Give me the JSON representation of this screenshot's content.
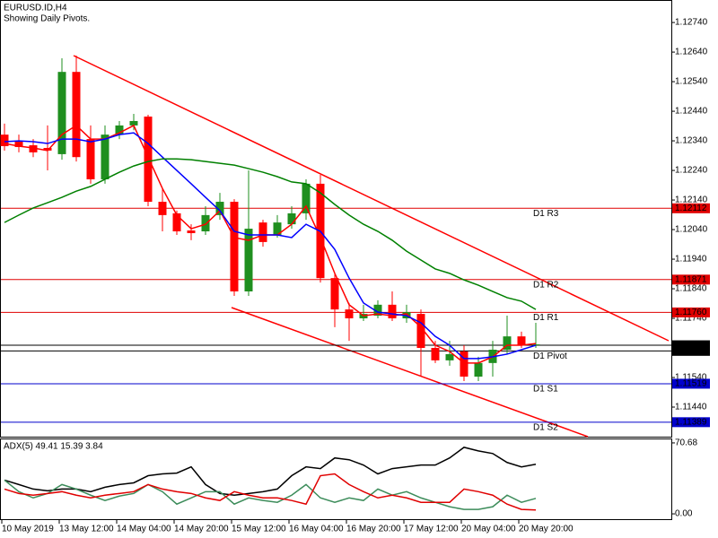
{
  "chart_data": [
    {
      "type": "candlestick",
      "title": "EURUSD.ID,H4",
      "subtitle": "Showing Daily Pivots.",
      "categories": [
        "10 May 2019",
        null,
        null,
        null,
        "13 May 12:00",
        null,
        null,
        null,
        "14 May 04:00",
        null,
        null,
        null,
        "14 May 20:00",
        null,
        null,
        null,
        "15 May 12:00",
        null,
        null,
        null,
        "16 May 04:00",
        null,
        null,
        null,
        "16 May 20:00",
        null,
        null,
        null,
        "17 May 12:00",
        null,
        null,
        null,
        "20 May 04:00",
        null,
        null,
        null,
        "20 May 20:00",
        null
      ],
      "open": [
        1.12361,
        1.12337,
        1.12325,
        1.12316,
        1.12295,
        1.12573,
        1.12346,
        1.1221,
        1.12361,
        1.12392,
        1.12422,
        1.12134,
        1.12095,
        1.12037,
        1.12034,
        1.12089,
        1.12134,
        1.11831,
        1.12064,
        1.12022,
        1.12058,
        1.12095,
        1.12195,
        1.11876,
        1.1177,
        1.1174,
        1.11749,
        1.11786,
        1.1174,
        1.11755,
        1.1164,
        1.11598,
        1.11628,
        1.11543,
        1.11589,
        1.11634,
        1.11679,
        1.11649
      ],
      "high": [
        1.12398,
        1.12361,
        1.12346,
        1.12392,
        1.12619,
        1.12628,
        1.12392,
        1.12392,
        1.12407,
        1.12431,
        1.12428,
        1.12179,
        1.12104,
        1.12058,
        1.12119,
        1.12164,
        1.12143,
        1.1224,
        1.12073,
        1.12089,
        1.12119,
        1.1221,
        1.12225,
        1.11892,
        1.11792,
        1.11786,
        1.11801,
        1.11831,
        1.11786,
        1.1177,
        1.11664,
        1.11664,
        1.11649,
        1.1161,
        1.11664,
        1.11749,
        1.11695,
        1.11725
      ],
      "low": [
        1.12307,
        1.12301,
        1.12285,
        1.1224,
        1.12276,
        1.1227,
        1.12195,
        1.12195,
        1.12346,
        1.12376,
        1.12119,
        1.12034,
        1.12022,
        1.12004,
        1.12022,
        1.12073,
        1.11816,
        1.11816,
        1.11982,
        1.12013,
        1.12043,
        1.12073,
        1.11861,
        1.1171,
        1.11664,
        1.11731,
        1.1174,
        1.11731,
        1.11725,
        1.11543,
        1.11589,
        1.1158,
        1.11528,
        1.11528,
        1.11543,
        1.11619,
        1.1164,
        1.1164
      ],
      "close": [
        1.12322,
        1.12319,
        1.12301,
        1.12307,
        1.12573,
        1.12285,
        1.1221,
        1.12361,
        1.12392,
        1.12407,
        1.12134,
        1.12089,
        1.12034,
        1.12028,
        1.12089,
        1.12134,
        1.11831,
        1.12043,
        1.11998,
        1.12064,
        1.12095,
        1.12195,
        1.11876,
        1.1177,
        1.1174,
        1.11755,
        1.11786,
        1.1174,
        1.11761,
        1.1164,
        1.11598,
        1.11619,
        1.11543,
        1.11589,
        1.11634,
        1.11679,
        1.11649,
        1.11652
      ],
      "up_color": "#1f8f1f",
      "down_color": "#ff0000",
      "series": [
        {
          "color": "#ff0000",
          "values": [
            1.12331,
            1.12322,
            1.12316,
            1.12307,
            1.12361,
            1.12392,
            1.12346,
            1.12346,
            1.12367,
            1.12392,
            1.12285,
            1.12179,
            1.12089,
            1.12043,
            1.12058,
            1.12104,
            1.12013,
            1.12004,
            1.12022,
            1.12022,
            1.12058,
            1.12119,
            1.12013,
            1.11892,
            1.11786,
            1.11749,
            1.11755,
            1.11749,
            1.11755,
            1.1171,
            1.11649,
            1.11628,
            1.11589,
            1.11589,
            1.1161,
            1.11649,
            1.11649,
            1.11655
          ]
        },
        {
          "color": "#0000ff",
          "values": [
            1.12337,
            1.1234,
            1.12337,
            1.12331,
            1.12346,
            1.12346,
            1.12337,
            1.12346,
            1.12361,
            1.12367,
            1.12331,
            1.12285,
            1.1224,
            1.12195,
            1.12149,
            1.12104,
            1.12034,
            1.12022,
            1.12022,
            1.12022,
            1.12013,
            1.12058,
            1.12034,
            1.11973,
            1.11876,
            1.11792,
            1.11761,
            1.11755,
            1.11749,
            1.11725,
            1.11679,
            1.11649,
            1.11604,
            1.11604,
            1.1161,
            1.11619,
            1.11634,
            1.11649
          ]
        },
        {
          "color": "#008000",
          "values": [
            1.12064,
            1.12089,
            1.12113,
            1.12131,
            1.12149,
            1.1217,
            1.12186,
            1.1221,
            1.12234,
            1.12255,
            1.1227,
            1.12279,
            1.12279,
            1.12276,
            1.1227,
            1.12264,
            1.12258,
            1.12246,
            1.12234,
            1.12219,
            1.12201,
            1.12195,
            1.12164,
            1.12125,
            1.12089,
            1.12058,
            1.12034,
            1.12004,
            1.11967,
            1.11937,
            1.11907,
            1.11892,
            1.1187,
            1.11852,
            1.11831,
            1.1181,
            1.11798,
            1.1177
          ]
        }
      ],
      "levels": [
        {
          "name": "D1 R3",
          "value": 1.12112,
          "value_label": "1.12112",
          "color": "#e00000"
        },
        {
          "name": "D1 R2",
          "value": 1.11871,
          "value_label": "1.11871",
          "color": "#e00000"
        },
        {
          "name": "D1 R1",
          "value": 1.1176,
          "value_label": "1.11760",
          "color": "#e00000"
        },
        {
          "name": "D1 Pivot",
          "value": 1.1163,
          "value_label": "1.11630",
          "color": "#000000"
        },
        {
          "name": "D1 S1",
          "value": 1.11519,
          "value_label": "1.11519",
          "color": "#0000cc"
        },
        {
          "name": "D1 S2",
          "value": 1.11389,
          "value_label": "1.11389",
          "color": "#0000cc"
        }
      ],
      "last_price": {
        "value": 1.11649,
        "label": "1.11649",
        "color": "#000000"
      },
      "ylim": [
        1.1134,
        1.1281
      ],
      "yticks": [
        {
          "value": 1.1274,
          "label": "1.12740"
        },
        {
          "value": 1.1264,
          "label": "1.12640"
        },
        {
          "value": 1.1254,
          "label": "1.12540"
        },
        {
          "value": 1.1244,
          "label": "1.12440"
        },
        {
          "value": 1.1234,
          "label": "1.12340"
        },
        {
          "value": 1.1224,
          "label": "1.12240"
        },
        {
          "value": 1.1214,
          "label": "1.12140"
        },
        {
          "value": 1.1204,
          "label": "1.12040"
        },
        {
          "value": 1.1194,
          "label": "1.11940"
        },
        {
          "value": 1.1184,
          "label": "1.11840"
        },
        {
          "value": 1.1174,
          "label": "1.11740"
        },
        {
          "value": 1.1164,
          "label": "1.11640"
        },
        {
          "value": 1.1154,
          "label": "1.11540"
        },
        {
          "value": 1.1144,
          "label": "1.11440"
        }
      ]
    },
    {
      "type": "line",
      "title": "ADX(5) 49.41 15.39 3.84",
      "series": [
        {
          "color": "#000000",
          "values": [
            33.6,
            29.2,
            24.7,
            23.0,
            24.7,
            24.7,
            22.1,
            26.5,
            29.2,
            30.9,
            38.0,
            39.8,
            40.6,
            46.8,
            29.2,
            20.3,
            18.6,
            20.3,
            22.1,
            24.7,
            38.0,
            46.8,
            45.1,
            55.7,
            53.9,
            48.6,
            39.8,
            45.1,
            46.8,
            48.6,
            48.6,
            55.7,
            66.3,
            62.7,
            60.1,
            51.2,
            46.8,
            49.4
          ]
        },
        {
          "color": "#3c8c5a",
          "values": [
            33.6,
            22.1,
            15.9,
            20.3,
            29.2,
            24.7,
            18.6,
            13.3,
            17.7,
            20.3,
            29.2,
            22.1,
            9.7,
            15.9,
            22.1,
            22.1,
            9.7,
            15.9,
            13.3,
            11.5,
            18.6,
            29.2,
            15.9,
            11.5,
            15.9,
            13.3,
            24.7,
            18.6,
            22.1,
            15.9,
            11.5,
            7.1,
            4.4,
            4.4,
            7.1,
            18.6,
            11.5,
            15.4
          ]
        },
        {
          "color": "#e00000",
          "values": [
            24.7,
            20.3,
            18.6,
            20.3,
            22.1,
            18.6,
            15.9,
            18.6,
            20.3,
            22.1,
            29.2,
            24.7,
            22.1,
            20.3,
            15.9,
            13.3,
            22.1,
            18.6,
            15.9,
            15.9,
            13.3,
            9.7,
            38.0,
            39.8,
            29.2,
            22.1,
            15.9,
            18.6,
            15.9,
            11.5,
            11.5,
            11.5,
            24.7,
            22.1,
            18.6,
            9.7,
            4.4,
            3.8
          ]
        }
      ],
      "ylim": [
        -6.2,
        75.1
      ],
      "yticks": [
        70.68,
        {
          "value": 0,
          "label": "0.00"
        }
      ]
    }
  ]
}
